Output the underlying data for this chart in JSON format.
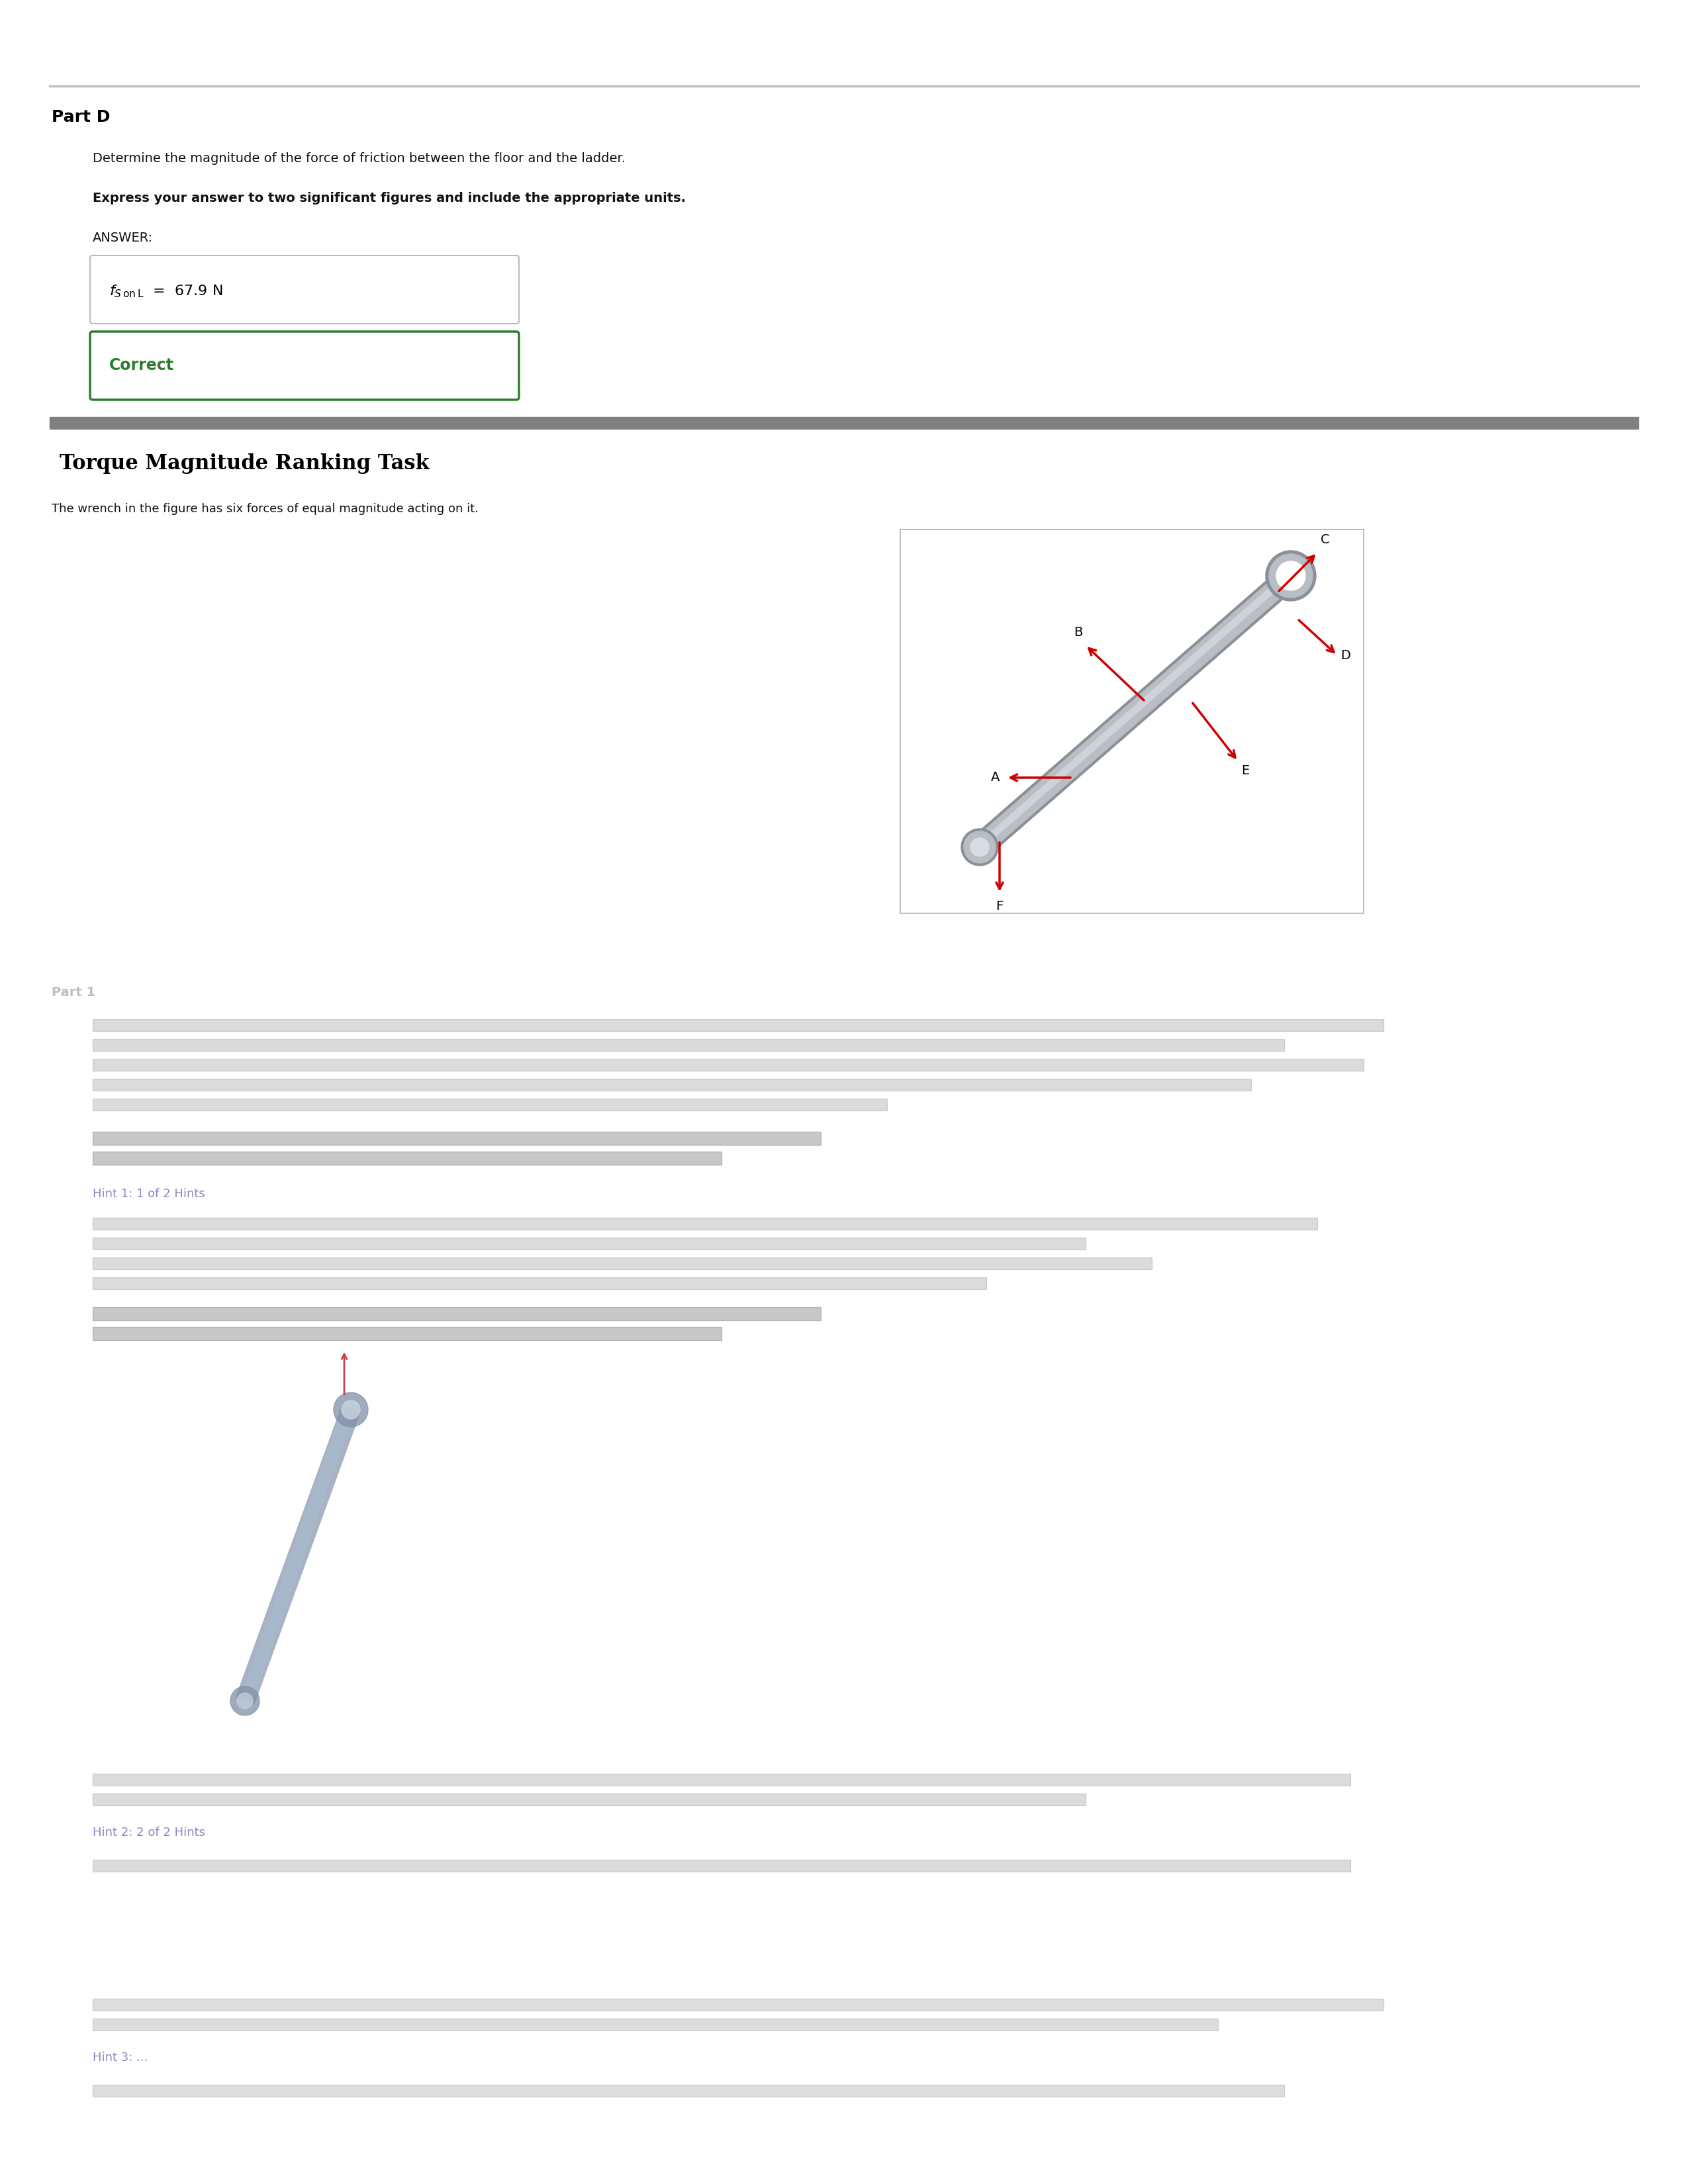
{
  "bg_color": "#ffffff",
  "page_width": 25.5,
  "page_height": 33.0,
  "part_d_label": "Part D",
  "part_d_desc": "Determine the magnitude of the force of friction between the floor and the ladder.",
  "part_d_bold": "Express your answer to two significant figures and include the appropriate units.",
  "answer_label": "ANSWER:",
  "correct_text": "Correct",
  "correct_color": "#2e7d2e",
  "correct_border": "#2e7d2e",
  "section2_title": "Torque Magnitude Ranking Task",
  "section2_desc": "The wrench in the figure has six forces of equal magnitude acting on it.",
  "separator_color": "#808080",
  "top_line_color": "#c0c0c0",
  "answer_box_border": "#bbbbbb",
  "wrench_color": "#b8bec4",
  "wrench_dark": "#8a9098",
  "arrow_color": "#cc0000",
  "blurred_text_color": "#999999",
  "blurred_bg": "#f0f0f0",
  "hint_link_color": "#5555aa"
}
